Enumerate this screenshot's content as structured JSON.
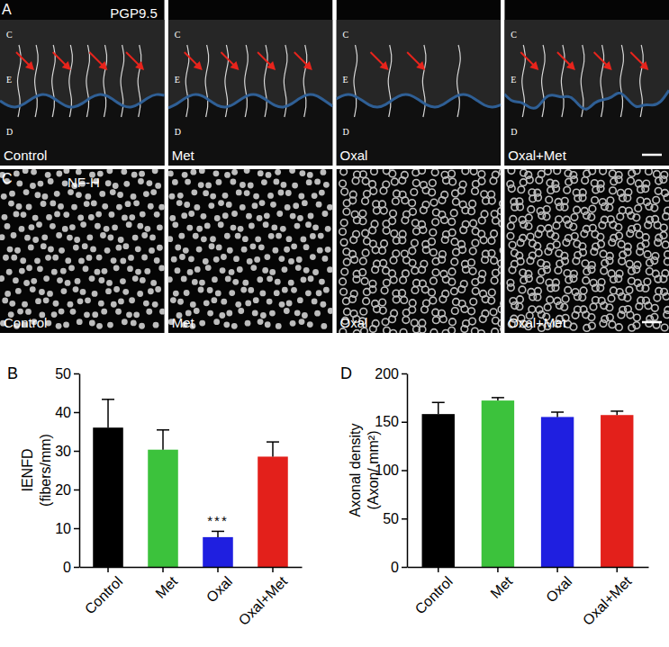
{
  "image_panels": [
    {
      "letter": "A",
      "stain": "PGP9.5",
      "layer_labels": [
        "C",
        "E",
        "D"
      ],
      "images": [
        "Control",
        "Met",
        "Oxal",
        "Oxal+Met"
      ]
    },
    {
      "letter": "C",
      "stain": "NF-H",
      "images": [
        "Control",
        "Met",
        "Oxal",
        "Oxal+Met"
      ]
    }
  ],
  "chart_panel_letters": [
    "B",
    "D"
  ],
  "chart_data": [
    {
      "type": "bar",
      "categories": [
        "Control",
        "Met",
        "Oxal",
        "Oxal+Met"
      ],
      "values": [
        36,
        30.3,
        7.7,
        28.5
      ],
      "errors": [
        7.3,
        5.1,
        1.5,
        3.8
      ],
      "colors": [
        "#000000",
        "#3cc23c",
        "#1f1fe0",
        "#e3201b"
      ],
      "ylabel": [
        "IENFD",
        "(fibers/mm)"
      ],
      "ylim": [
        0,
        50
      ],
      "yticks": [
        0,
        10,
        20,
        30,
        40,
        50
      ],
      "annotations": [
        {
          "category": "Oxal",
          "text": "***"
        }
      ]
    },
    {
      "type": "bar",
      "categories": [
        "Control",
        "Met",
        "Oxal",
        "Oxal+Met"
      ],
      "values": [
        158,
        172,
        155,
        157
      ],
      "errors": [
        12,
        3,
        5,
        4
      ],
      "colors": [
        "#000000",
        "#3cc23c",
        "#1f1fe0",
        "#e3201b"
      ],
      "ylabel": [
        "Axonal density",
        "(Axon/ mm²)"
      ],
      "ylim": [
        0,
        200
      ],
      "yticks": [
        0,
        50,
        100,
        150,
        200
      ]
    }
  ]
}
